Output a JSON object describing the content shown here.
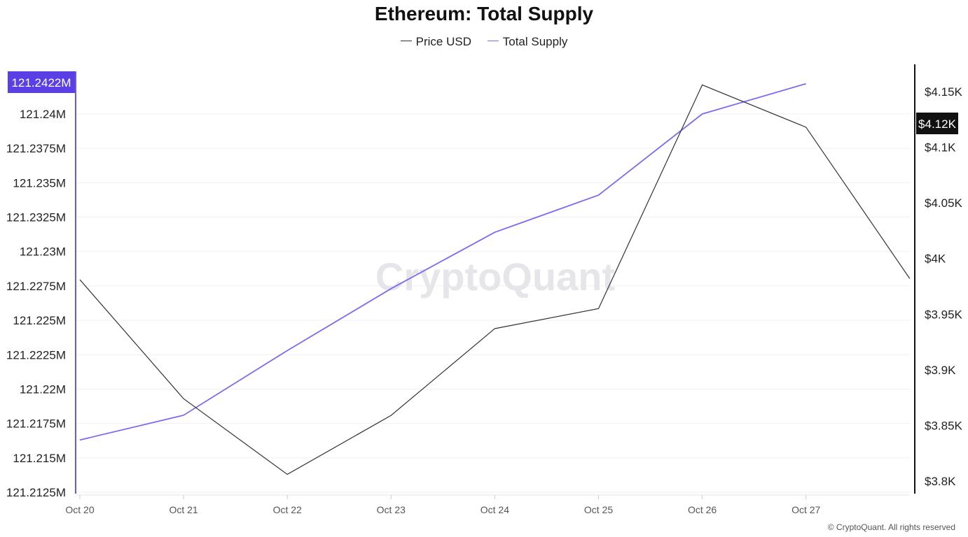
{
  "title": "Ethereum: Total Supply",
  "legend": [
    {
      "name": "Price USD",
      "color": "#333333"
    },
    {
      "name": "Total Supply",
      "color": "#7b6cf0"
    }
  ],
  "watermark": "CryptoQuant",
  "credit": "© CryptoQuant. All rights reserved",
  "left_marker_label": "121.2422M",
  "right_marker_label": "$4.12K",
  "chart_data": {
    "type": "line",
    "x": [
      "Oct 20",
      "Oct 21",
      "Oct 22",
      "Oct 23",
      "Oct 24",
      "Oct 25",
      "Oct 26",
      "Oct 27"
    ],
    "left_axis": {
      "ylim": [
        121.2125,
        121.2423
      ],
      "ticks": [
        121.2125,
        121.215,
        121.2175,
        121.22,
        121.2225,
        121.225,
        121.2275,
        121.23,
        121.2325,
        121.235,
        121.2375,
        121.24
      ],
      "tick_labels": [
        "121.2125M",
        "121.215M",
        "121.2175M",
        "121.22M",
        "121.2225M",
        "121.225M",
        "121.2275M",
        "121.23M",
        "121.2325M",
        "121.235M",
        "121.2375M",
        "121.24M"
      ]
    },
    "right_axis": {
      "ylim": [
        3.795,
        4.18
      ],
      "ticks": [
        3.8,
        3.85,
        3.9,
        3.95,
        4.0,
        4.05,
        4.1,
        4.15
      ],
      "tick_labels": [
        "$3.8K",
        "$3.85K",
        "$3.9K",
        "$3.95K",
        "$4K",
        "$4.05K",
        "$4.1K",
        "$4.15K"
      ]
    },
    "series": [
      {
        "name": "Total Supply",
        "axis": "left",
        "color": "#7b6cf0",
        "x": [
          "Oct 20",
          "Oct 21",
          "Oct 22",
          "Oct 23",
          "Oct 24",
          "Oct 25",
          "Oct 26",
          "Oct 27"
        ],
        "values": [
          121.2163,
          121.2181,
          121.2228,
          121.2273,
          121.2314,
          121.2341,
          121.24,
          121.2422
        ]
      },
      {
        "name": "Price USD",
        "axis": "right",
        "color": "#333333",
        "x": [
          "Oct 20",
          "Oct 21",
          "Oct 22",
          "Oct 23",
          "Oct 24",
          "Oct 25",
          "Oct 26",
          "Oct 27",
          "Oct 28"
        ],
        "values": [
          3.981,
          3.874,
          3.806,
          3.859,
          3.937,
          3.955,
          4.156,
          4.118,
          3.982
        ]
      }
    ],
    "grid": true,
    "legend_position": "top-center"
  }
}
